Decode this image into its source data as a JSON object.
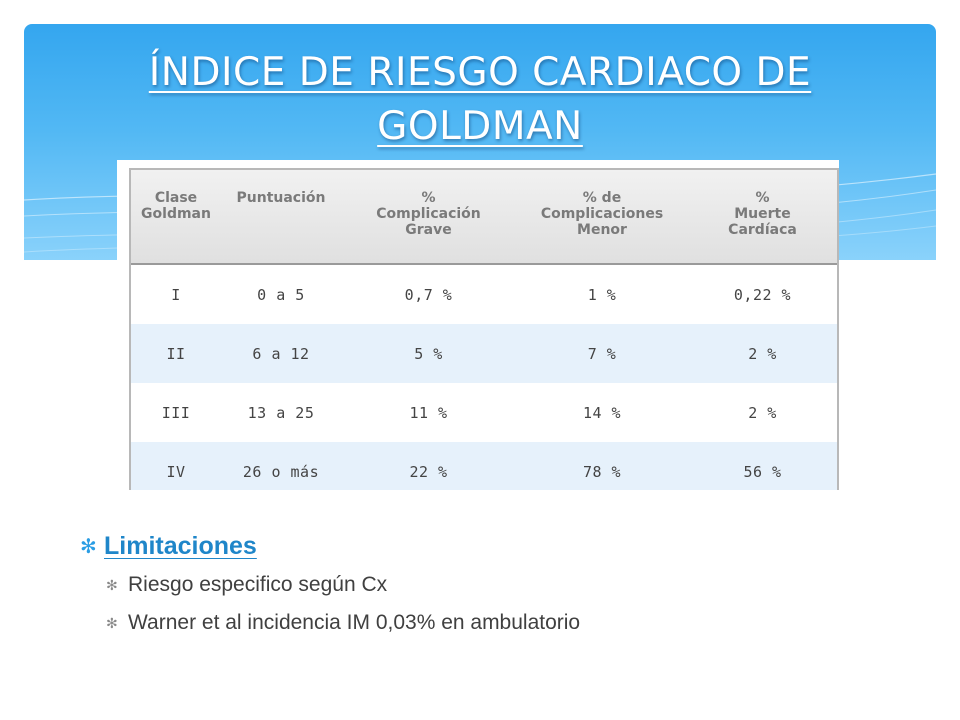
{
  "slide": {
    "title_line1": "ÍNDICE DE RIESGO CARDIACO DE",
    "title_line2": "GOLDMAN",
    "header_color": "#3fa9f0"
  },
  "table": {
    "headers": [
      [
        "Clase",
        "Goldman"
      ],
      [
        "Puntuación"
      ],
      [
        "%",
        "Complicación",
        "Grave"
      ],
      [
        "% de",
        "Complicaciones",
        "Menor"
      ],
      [
        "%",
        "Muerte",
        "Cardíaca"
      ]
    ],
    "rows": [
      [
        "I",
        "0 a 5",
        "0,7 %",
        "1 %",
        "0,22 %"
      ],
      [
        "II",
        "6 a 12",
        "5 %",
        "7 %",
        "2 %"
      ],
      [
        "III",
        "13 a 25",
        "11 %",
        "14 %",
        "2 %"
      ],
      [
        "IV",
        "26 o más",
        "22 %",
        "78 %",
        "56 %"
      ]
    ]
  },
  "bullets": {
    "main": "Limitaciones",
    "sub": [
      "Riesgo especifico según Cx",
      "Warner et al incidencia IM 0,03% en ambulatorio"
    ]
  }
}
